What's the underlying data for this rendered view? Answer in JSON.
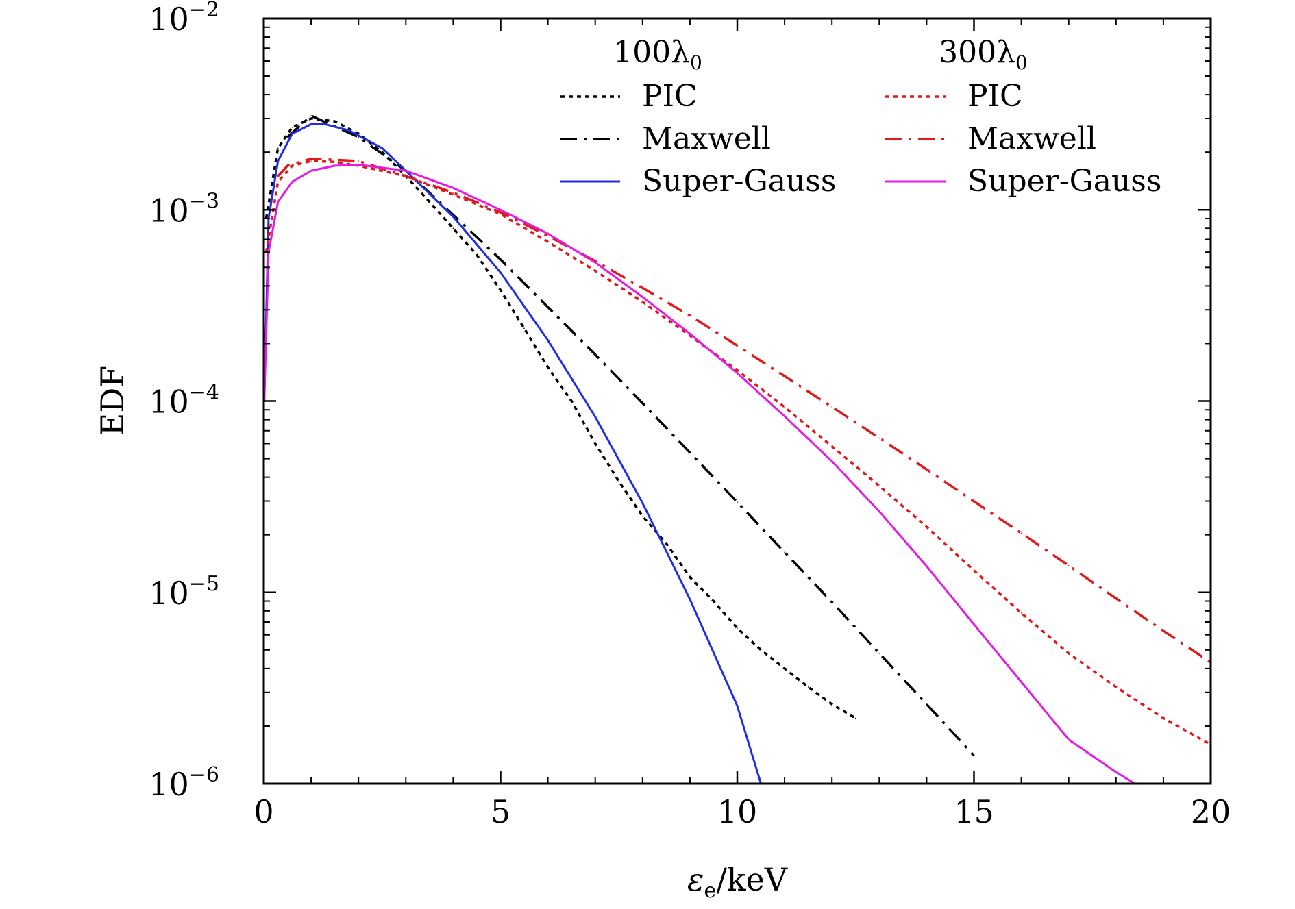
{
  "chart_data": {
    "type": "line",
    "title": "",
    "xlabel": "εe/keV",
    "xlabel_main": "ε",
    "xlabel_sub": "e",
    "xlabel_rest": "/keV",
    "ylabel": "EDF",
    "xlim": [
      0,
      20
    ],
    "ylim": [
      1e-06,
      0.01
    ],
    "yscale": "log",
    "grid": false,
    "legend_placement": "top-right",
    "x_ticks": [
      {
        "value": 0,
        "label": "0"
      },
      {
        "value": 5,
        "label": "5"
      },
      {
        "value": 10,
        "label": "10"
      },
      {
        "value": 15,
        "label": "15"
      },
      {
        "value": 20,
        "label": "20"
      }
    ],
    "y_ticks": [
      {
        "value": 0.01,
        "base": "10",
        "exp": "−2"
      },
      {
        "value": 0.001,
        "base": "10",
        "exp": "−3"
      },
      {
        "value": 0.0001,
        "base": "10",
        "exp": "−4"
      },
      {
        "value": 1e-05,
        "base": "10",
        "exp": "−5"
      },
      {
        "value": 1e-06,
        "base": "10",
        "exp": "−6"
      }
    ],
    "groups": [
      {
        "name": "100λ0",
        "name_main": "100λ",
        "name_sub": "0"
      },
      {
        "name": "300λ0",
        "name_main": "300λ",
        "name_sub": "0"
      }
    ],
    "series": [
      {
        "name": "PIC",
        "group": "100λ0",
        "color": "#000000",
        "style": "dotted",
        "x": [
          0.05,
          0.3,
          0.6,
          1.0,
          1.5,
          2.0,
          2.5,
          3.0,
          3.5,
          4.0,
          4.5,
          5.0,
          5.5,
          6.0,
          6.5,
          7.0,
          7.5,
          8.0,
          8.5,
          9.0,
          9.5,
          10.0,
          10.5,
          11.0,
          11.5,
          12.0,
          12.5
        ],
        "y": [
          0.0009,
          0.0021,
          0.0027,
          0.003,
          0.0029,
          0.0025,
          0.002,
          0.0015,
          0.0011,
          0.0008,
          0.00058,
          0.00038,
          0.00024,
          0.00015,
          0.0001,
          6e-05,
          3.8e-05,
          2.5e-05,
          1.8e-05,
          1.2e-05,
          9e-06,
          6.5e-06,
          5e-06,
          4e-06,
          3.2e-06,
          2.6e-06,
          2.2e-06
        ]
      },
      {
        "name": "Maxwell",
        "group": "100λ0",
        "color": "#000000",
        "style": "dashdot",
        "x": [
          0.5,
          1,
          2,
          3,
          4,
          5,
          6,
          7,
          8,
          9,
          10,
          11,
          12,
          13,
          14,
          15
        ],
        "y": [
          0.0024,
          0.0031,
          0.0024,
          0.0016,
          0.00094,
          0.00055,
          0.00031,
          0.000175,
          9.75e-05,
          5.38e-05,
          2.96e-05,
          1.62e-05,
          8.9e-06,
          4.8e-06,
          2.6e-06,
          1.4e-06
        ]
      },
      {
        "name": "Super-Gauss",
        "group": "100λ0",
        "color": "#1f2ee6",
        "style": "solid",
        "x": [
          0.01,
          0.1,
          0.3,
          0.6,
          1.0,
          1.3,
          1.8,
          2.5,
          3.0,
          4.0,
          5.0,
          6.0,
          7.0,
          8.0,
          9.0,
          10.0,
          10.5
        ],
        "y": [
          0.0001,
          0.0009,
          0.0018,
          0.0025,
          0.0028,
          0.0028,
          0.0026,
          0.0021,
          0.0016,
          0.00092,
          0.00047,
          0.000208,
          8.27e-05,
          2.93e-05,
          9.2e-06,
          2.55e-06,
          1e-06
        ]
      },
      {
        "name": "PIC",
        "group": "300λ0",
        "color": "#e0191b",
        "style": "dotted",
        "x": [
          0.05,
          0.3,
          0.6,
          1.0,
          1.5,
          2.0,
          3.0,
          4.0,
          5.0,
          6.0,
          7.0,
          8.0,
          9.0,
          10.0,
          11.0,
          12.0,
          13.0,
          14.0,
          15.0,
          16.0,
          17.0,
          18.0,
          19.0,
          20.0
        ],
        "y": [
          0.0006,
          0.0014,
          0.0017,
          0.0018,
          0.00178,
          0.0017,
          0.0015,
          0.0012,
          0.00095,
          0.00068,
          0.00048,
          0.00033,
          0.00022,
          0.000145,
          9.3e-05,
          5.8e-05,
          3.6e-05,
          2.2e-05,
          1.3e-05,
          7.8e-06,
          4.8e-06,
          3.2e-06,
          2.2e-06,
          1.6e-06
        ]
      },
      {
        "name": "Maxwell",
        "group": "300λ0",
        "color": "#e0191b",
        "style": "dashdot",
        "x": [
          0.3,
          0.5,
          1,
          2,
          3,
          4,
          5,
          6,
          7,
          8,
          9,
          10,
          11,
          12,
          13,
          14,
          15,
          16,
          17,
          18,
          19,
          20
        ],
        "y": [
          0.0015,
          0.0017,
          0.00185,
          0.0018,
          0.0015,
          0.00123,
          0.00097,
          0.00073,
          0.00054,
          0.00039,
          0.00028,
          0.000195,
          0.000135,
          9.32e-05,
          6.41e-05,
          4.39e-05,
          2.99e-05,
          2.04e-05,
          1.38e-05,
          9.3e-06,
          6.3e-06,
          4.3e-06
        ]
      },
      {
        "name": "Super-Gauss",
        "group": "300λ0",
        "color": "#e619e6",
        "style": "solid",
        "x": [
          0.01,
          0.1,
          0.3,
          0.6,
          1.0,
          1.5,
          2.0,
          3.0,
          4.0,
          5.0,
          6.0,
          7.0,
          8.0,
          9.0,
          10.0,
          11.0,
          12.0,
          13.0,
          14.0,
          15.0,
          16.0,
          17.0,
          18.0,
          18.4
        ],
        "y": [
          0.0001,
          0.0006,
          0.0011,
          0.0014,
          0.0016,
          0.0017,
          0.00172,
          0.0016,
          0.0013,
          0.001,
          0.00075,
          0.00053,
          0.00035,
          0.000225,
          0.00014,
          8.33e-05,
          4.84e-05,
          2.65e-05,
          1.37e-05,
          6.8e-06,
          3.4e-06,
          1.7e-06,
          1.15e-06,
          1e-06
        ]
      }
    ]
  }
}
